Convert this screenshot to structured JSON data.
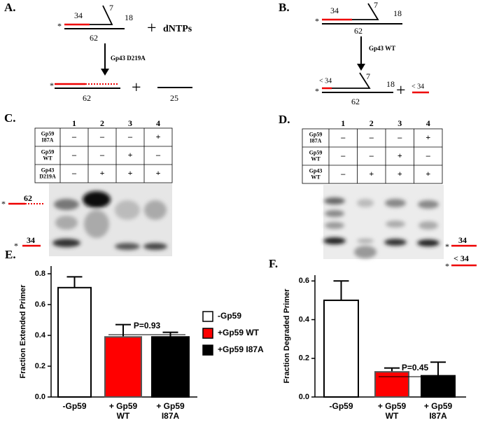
{
  "panels": {
    "a": {
      "label": "A.",
      "star": "*",
      "primer": "34",
      "flap": "7",
      "overhang": "18",
      "template": "62",
      "plus": "+",
      "dntps": "dNTPs",
      "enzyme": "Gp43 D219A",
      "product_star": "*",
      "product_template": "62",
      "plus2": "+",
      "released": "25"
    },
    "b": {
      "label": "B.",
      "star": "*",
      "primer": "34",
      "flap": "7",
      "overhang": "18",
      "template": "62",
      "enzyme": "Gp43 WT",
      "product_primer": "< 34",
      "product_star": "*",
      "product_flap": "7",
      "product_overhang": "18",
      "product_template": "62",
      "plus": "+",
      "released": "< 34"
    },
    "c": {
      "label": "C.",
      "lanes": [
        "1",
        "2",
        "3",
        "4"
      ],
      "rows": [
        {
          "name": [
            "Gp59",
            "I87A"
          ],
          "cells": [
            "–",
            "–",
            "–",
            "+"
          ]
        },
        {
          "name": [
            "Gp59",
            "WT"
          ],
          "cells": [
            "–",
            "–",
            "+",
            "–"
          ]
        },
        {
          "name": [
            "Gp43",
            "D219A"
          ],
          "cells": [
            "–",
            "+",
            "+",
            "+"
          ]
        }
      ],
      "markers": [
        {
          "star": "*",
          "label": "62"
        },
        {
          "star": "*",
          "label": "34"
        }
      ]
    },
    "d": {
      "label": "D.",
      "lanes": [
        "1",
        "2",
        "3",
        "4"
      ],
      "rows": [
        {
          "name": [
            "Gp59",
            "I87A"
          ],
          "cells": [
            "–",
            "–",
            "–",
            "+"
          ]
        },
        {
          "name": [
            "Gp59",
            "WT"
          ],
          "cells": [
            "–",
            "–",
            "+",
            "–"
          ]
        },
        {
          "name": [
            "Gp43",
            "WT"
          ],
          "cells": [
            "–",
            "+",
            "+",
            "+"
          ]
        }
      ],
      "markers": [
        {
          "star": "*",
          "label": "34"
        },
        {
          "star": "*",
          "label": "< 34"
        }
      ]
    }
  },
  "chart_data": [
    {
      "type": "bar",
      "panel_label": "E.",
      "ylabel": "Fraction  Extended Primer",
      "categories": [
        [
          "-Gp59"
        ],
        [
          "+ Gp59",
          "WT"
        ],
        [
          "+ Gp59",
          "I87A"
        ]
      ],
      "values": [
        0.71,
        0.39,
        0.39
      ],
      "errors": [
        0.07,
        0.08,
        0.03
      ],
      "colors": [
        "#ffffff",
        "#ff0000",
        "#000000"
      ],
      "ylim": [
        0,
        0.85
      ],
      "yticks": [
        {
          "value": 0,
          "label": "0.0"
        },
        {
          "value": 0.2,
          "label": "0.2"
        },
        {
          "value": 0.4,
          "label": "0.4"
        },
        {
          "value": 0.6,
          "label": "0.6"
        },
        {
          "value": 0.8,
          "label": "0.8"
        }
      ],
      "annotation": "P=0.93",
      "legend": [
        {
          "name": "-Gp59",
          "color": "#ffffff"
        },
        {
          "name": "+Gp59 WT",
          "color": "#ff0000"
        },
        {
          "name": "+Gp59 I87A",
          "color": "#000000"
        }
      ]
    },
    {
      "type": "bar",
      "panel_label": "F.",
      "ylabel": "Fraction  Degraded Primer",
      "categories": [
        [
          "-Gp59"
        ],
        [
          "+ Gp59",
          "WT"
        ],
        [
          "+ Gp59",
          "I87A"
        ]
      ],
      "values": [
        0.5,
        0.13,
        0.11
      ],
      "errors": [
        0.1,
        0.02,
        0.07
      ],
      "colors": [
        "#ffffff",
        "#ff0000",
        "#000000"
      ],
      "ylim": [
        0,
        0.63
      ],
      "yticks": [
        {
          "value": 0,
          "label": "0.0"
        },
        {
          "value": 0.2,
          "label": "0.2"
        },
        {
          "value": 0.4,
          "label": "0.4"
        },
        {
          "value": 0.6,
          "label": "0.6"
        }
      ],
      "annotation": "P=0.45"
    }
  ]
}
